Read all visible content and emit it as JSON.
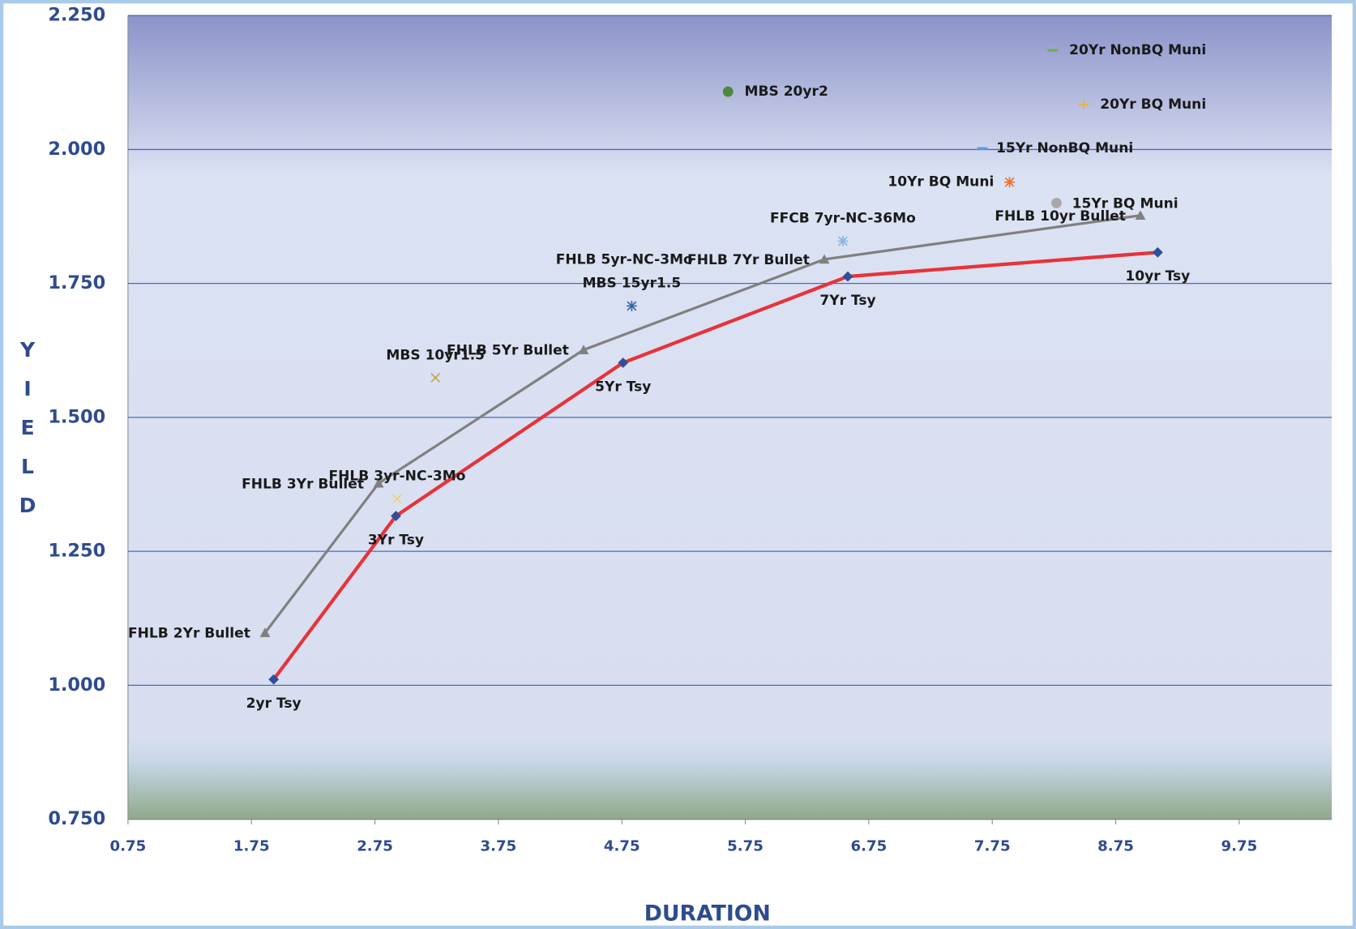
{
  "chart_data": {
    "type": "line",
    "xlabel": "DURATION",
    "ylabel": "YIELD",
    "xlim": [
      0.75,
      10.5
    ],
    "xticks": [
      0.75,
      1.75,
      2.75,
      3.75,
      4.75,
      5.75,
      6.75,
      7.75,
      8.75,
      9.75
    ],
    "ylim": [
      0.75,
      2.25
    ],
    "yticks": [
      {
        "value": 0.75,
        "label": "0.750"
      },
      {
        "value": 1,
        "label": "1.000"
      },
      {
        "value": 1.25,
        "label": "1.250"
      },
      {
        "value": 1.5,
        "label": "1.500"
      },
      {
        "value": 1.75,
        "label": "1.750"
      },
      {
        "value": 2,
        "label": "2.000"
      },
      {
        "value": 2.25,
        "label": "2.250"
      }
    ],
    "grid": true,
    "series": [
      {
        "color": "#e8323a",
        "marker": "diamond",
        "marker_color": "#2f4f9a",
        "x": [
          1.93,
          2.92,
          4.76,
          6.58,
          9.09
        ],
        "values": [
          1.011,
          1.316,
          1.602,
          1.763,
          1.808
        ],
        "labels": [
          "2yr Tsy",
          "3Yr Tsy",
          "5Yr Tsy",
          "7Yr Tsy",
          "10yr Tsy"
        ]
      },
      {
        "color": "#808080",
        "marker": "triangle",
        "marker_color": "#808080",
        "x": [
          1.86,
          2.78,
          4.44,
          6.39,
          8.95
        ],
        "values": [
          1.098,
          1.377,
          1.626,
          1.795,
          1.877
        ],
        "labels": [
          "FHLB 2Yr Bullet",
          "FHLB 3Yr Bullet",
          "FHLB 5Yr Bullet",
          "FHLB 7Yr Bullet",
          "FHLB 10yr Bullet"
        ]
      }
    ],
    "points": [
      {
        "label": "MBS 20yr2",
        "x": 5.61,
        "y": 2.108,
        "color": "#4a8a3a",
        "marker": "circle"
      },
      {
        "label": "20Yr NonBQ Muni",
        "x": 8.24,
        "y": 2.185,
        "color": "#6ab04c",
        "marker": "dash"
      },
      {
        "label": "20Yr BQ Muni",
        "x": 8.49,
        "y": 2.084,
        "color": "#f0b030",
        "marker": "plus"
      },
      {
        "label": "15Yr NonBQ Muni",
        "x": 7.67,
        "y": 2.002,
        "color": "#5aa0d8",
        "marker": "dash"
      },
      {
        "label": "10Yr BQ Muni",
        "x": 7.89,
        "y": 1.939,
        "color": "#f07030",
        "marker": "asterisk"
      },
      {
        "label": "15Yr BQ Muni",
        "x": 8.27,
        "y": 1.9,
        "color": "#a8a8a8",
        "marker": "circle"
      },
      {
        "label": "FFCB 7yr-NC-36Mo",
        "x": 6.54,
        "y": 1.829,
        "color": "#8ab4e0",
        "marker": "asterisk"
      },
      {
        "label": "FHLB 5yr-NC-3Mo",
        "x": 4.77,
        "y": 1.752,
        "color": "#d8dce8",
        "marker": "x"
      },
      {
        "label": "MBS 15yr1.5",
        "x": 4.83,
        "y": 1.708,
        "color": "#3a68a8",
        "marker": "asterisk"
      },
      {
        "label": "MBS 10yr1.5",
        "x": 3.24,
        "y": 1.574,
        "color": "#c8a050",
        "marker": "x"
      },
      {
        "label": "FHLB 3yr-NC-3Mo",
        "x": 2.93,
        "y": 1.348,
        "color": "#f0d070",
        "marker": "x"
      }
    ]
  }
}
